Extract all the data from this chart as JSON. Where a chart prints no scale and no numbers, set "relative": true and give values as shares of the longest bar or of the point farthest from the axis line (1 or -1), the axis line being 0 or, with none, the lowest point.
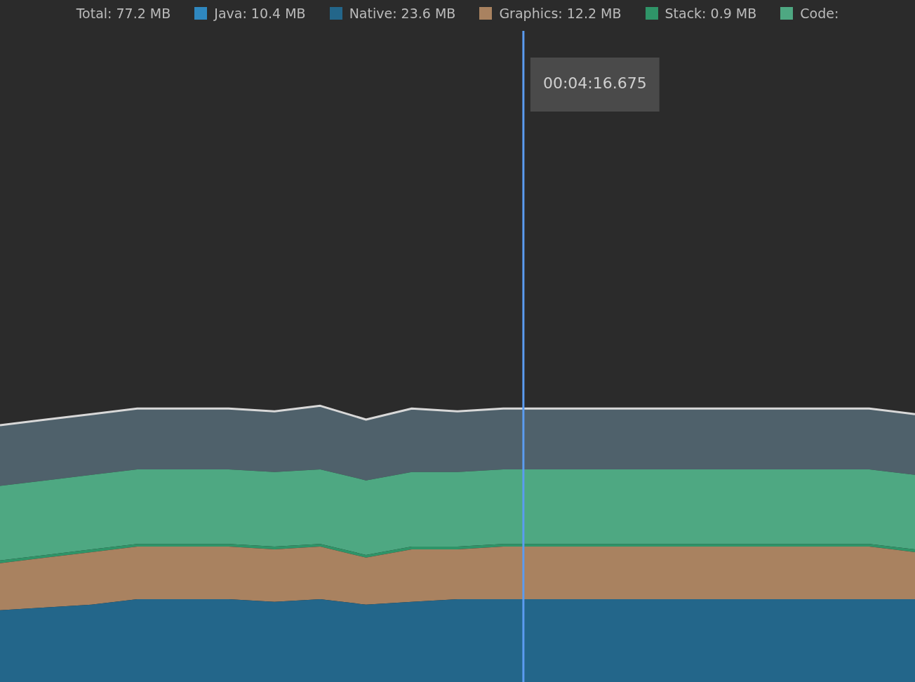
{
  "chart_data": {
    "type": "area",
    "stacked": true,
    "relative": true,
    "legend": "top",
    "legend_title": "Total: 77.2 MB",
    "categories": [
      null,
      null,
      null,
      null,
      null,
      null,
      null,
      null,
      null,
      null,
      null,
      null,
      null,
      null,
      null,
      null,
      null,
      null,
      null,
      null,
      null
    ],
    "series": [
      {
        "name": "Java: 10.4 MB",
        "color": "#2f88c0",
        "values": [
          null,
          null,
          null,
          null,
          null,
          null,
          null,
          null,
          null,
          null,
          null,
          null,
          null,
          null,
          null,
          null,
          null,
          null,
          null,
          null,
          null
        ]
      },
      {
        "name": "Native: 23.6 MB",
        "color": "#23668a",
        "values": [
          0.26,
          0.27,
          0.28,
          0.3,
          0.3,
          0.3,
          0.29,
          0.3,
          0.28,
          0.29,
          0.3,
          0.3,
          0.3,
          0.3,
          0.3,
          0.3,
          0.3,
          0.3,
          0.3,
          0.3,
          0.3
        ]
      },
      {
        "name": "Graphics: 12.2 MB",
        "color": "#a98260",
        "values": [
          0.17,
          0.18,
          0.19,
          0.19,
          0.19,
          0.19,
          0.19,
          0.19,
          0.17,
          0.19,
          0.18,
          0.19,
          0.19,
          0.19,
          0.19,
          0.19,
          0.19,
          0.19,
          0.19,
          0.19,
          0.17
        ]
      },
      {
        "name": "Stack: 0.9 MB",
        "color": "#2f9468",
        "values": [
          0.01,
          0.01,
          0.01,
          0.01,
          0.01,
          0.01,
          0.01,
          0.01,
          0.01,
          0.01,
          0.01,
          0.01,
          0.01,
          0.01,
          0.01,
          0.01,
          0.01,
          0.01,
          0.01,
          0.01,
          0.01
        ]
      },
      {
        "name": "Code:",
        "color": "#4ea882",
        "values": [
          0.27,
          0.27,
          0.27,
          0.27,
          0.27,
          0.27,
          0.27,
          0.27,
          0.27,
          0.27,
          0.27,
          0.27,
          0.27,
          0.27,
          0.27,
          0.27,
          0.27,
          0.27,
          0.27,
          0.27,
          0.27
        ]
      },
      {
        "color": "#4f616b",
        "values": [
          0.22,
          0.22,
          0.22,
          0.22,
          0.22,
          0.22,
          0.22,
          0.23,
          0.22,
          0.23,
          0.22,
          0.22,
          0.22,
          0.22,
          0.22,
          0.22,
          0.22,
          0.22,
          0.22,
          0.22,
          0.22
        ]
      }
    ],
    "annotations": [
      "00:04:16.675"
    ]
  }
}
